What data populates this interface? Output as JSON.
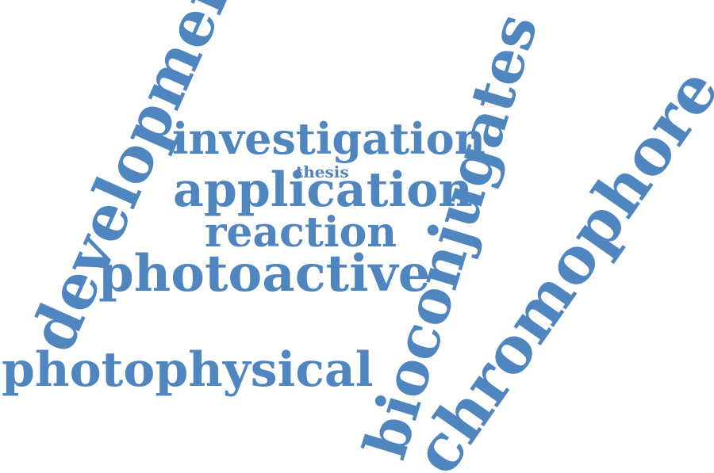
{
  "color": "#4f86bf",
  "words": [
    {
      "id": "development",
      "text": "development"
    },
    {
      "id": "bioconjugates",
      "text": "bioconjugates"
    },
    {
      "id": "chromophore",
      "text": "chromophore"
    },
    {
      "id": "investigation",
      "text": "investigation"
    },
    {
      "id": "thesis",
      "text": "thesis"
    },
    {
      "id": "application",
      "text": "application"
    },
    {
      "id": "reaction",
      "text": "reaction"
    },
    {
      "id": "photoactive",
      "text": "photoactive"
    },
    {
      "id": "photophysical",
      "text": "photophysical"
    }
  ]
}
